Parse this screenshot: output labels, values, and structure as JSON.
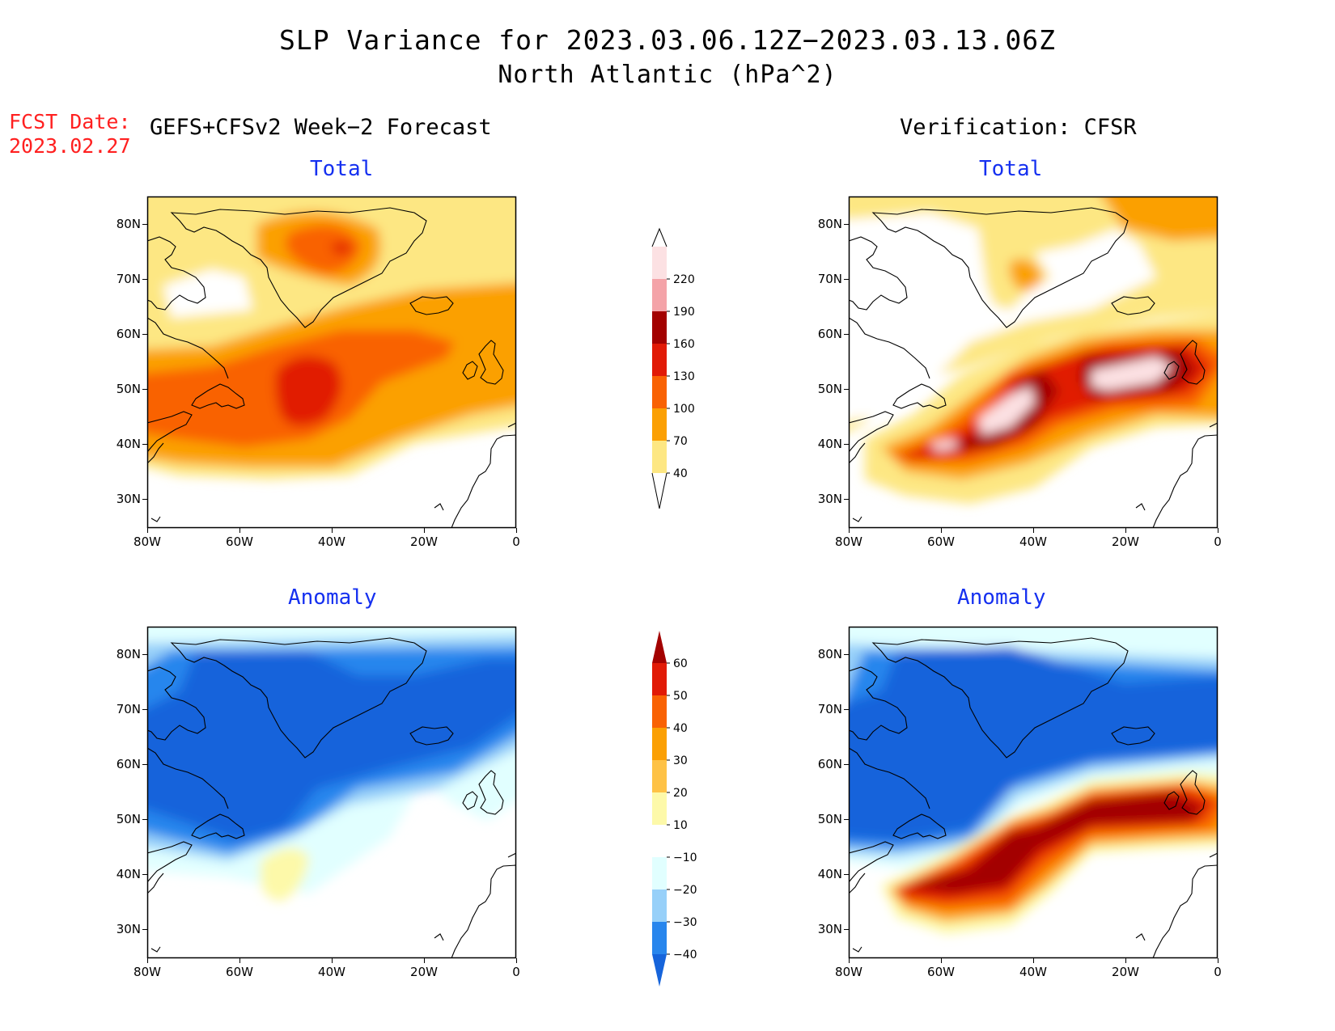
{
  "title": "SLP Variance for 2023.03.06.12Z−2023.03.13.06Z",
  "subtitle": "North Atlantic (hPa^2)",
  "fcst_label": "FCST Date:",
  "fcst_date": "2023.02.27",
  "left_header": "GEFS+CFSv2 Week−2 Forecast",
  "right_header": "Verification: CFSR",
  "panels": {
    "top_left_title": "Total",
    "top_right_title": "Total",
    "bottom_left_title": "Anomaly",
    "bottom_right_title": "Anomaly"
  },
  "axes": {
    "lat_labels": [
      "80N",
      "70N",
      "60N",
      "50N",
      "40N",
      "30N"
    ],
    "lon_labels": [
      "80W",
      "60W",
      "40W",
      "20W",
      "0"
    ]
  },
  "colorbars": {
    "total": {
      "levels": [
        "40",
        "70",
        "100",
        "130",
        "160",
        "190",
        "220"
      ],
      "colors": [
        "#fde783",
        "#fba004",
        "#f96204",
        "#e11a06",
        "#a30100",
        "#f4a3a8",
        "#fce1e3"
      ]
    },
    "anomaly": {
      "levels": [
        "−40",
        "−30",
        "−20",
        "−10",
        "10",
        "20",
        "30",
        "40",
        "50",
        "60"
      ],
      "colors": [
        "#1664db",
        "#2886ed",
        "#97d0f9",
        "#e1ffff",
        "#ffffff",
        "#fdf9a9",
        "#fec246",
        "#fba004",
        "#f96204",
        "#e11a06",
        "#a30100"
      ]
    }
  },
  "colors": {
    "title_blue": "#1530f0",
    "fcst_red": "#ff2020"
  }
}
